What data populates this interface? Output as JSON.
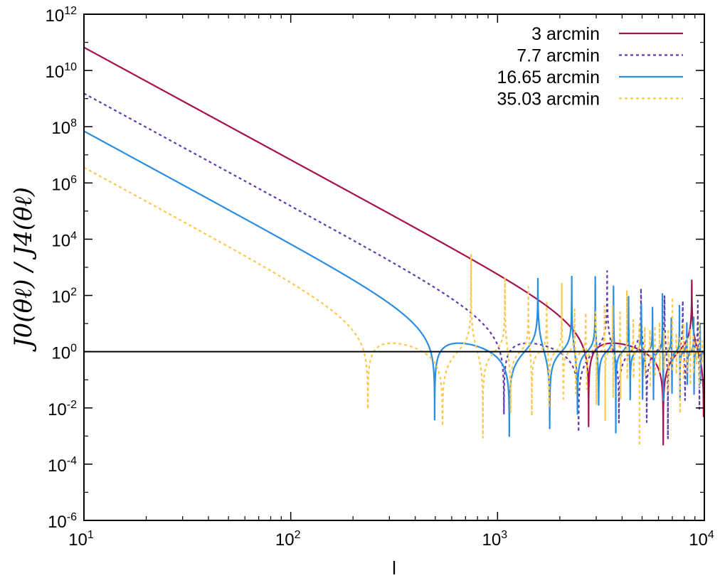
{
  "chart_data": {
    "type": "line",
    "xlabel": "l",
    "ylabel": "J0(θℓ) / J4(θℓ)",
    "xscale": "log",
    "yscale": "log",
    "xlim": [
      10,
      10000
    ],
    "ylim": [
      1e-06,
      1000000000000.0
    ],
    "x_ticks": [
      {
        "base": "10",
        "exp": "1",
        "value": 10
      },
      {
        "base": "10",
        "exp": "2",
        "value": 100
      },
      {
        "base": "10",
        "exp": "3",
        "value": 1000
      },
      {
        "base": "10",
        "exp": "4",
        "value": 10000
      }
    ],
    "y_ticks": [
      {
        "base": "10",
        "exp": "-6",
        "value": 1e-06
      },
      {
        "base": "10",
        "exp": "-4",
        "value": 0.0001
      },
      {
        "base": "10",
        "exp": "-2",
        "value": 0.01
      },
      {
        "base": "10",
        "exp": "0",
        "value": 1
      },
      {
        "base": "10",
        "exp": "2",
        "value": 100
      },
      {
        "base": "10",
        "exp": "4",
        "value": 10000.0
      },
      {
        "base": "10",
        "exp": "6",
        "value": 1000000.0
      },
      {
        "base": "10",
        "exp": "8",
        "value": 100000000.0
      },
      {
        "base": "10",
        "exp": "10",
        "value": 10000000000.0
      },
      {
        "base": "10",
        "exp": "12",
        "value": 1000000000000.0
      }
    ],
    "reference_line": {
      "y": 1,
      "color": "#000000"
    },
    "legend_position": "top-right",
    "series": [
      {
        "name": "3 arcmin",
        "theta_arcmin": 3,
        "color": "#a3114f",
        "style": "solid"
      },
      {
        "name": "7.7 arcmin",
        "theta_arcmin": 7.7,
        "color": "#5e3cae",
        "style": "dashed"
      },
      {
        "name": "16.65 arcmin",
        "theta_arcmin": 16.65,
        "color": "#2a8ee0",
        "style": "solid"
      },
      {
        "name": "35.03 arcmin",
        "theta_arcmin": 35.03,
        "color": "#ffc64a",
        "style": "dashed"
      }
    ]
  }
}
